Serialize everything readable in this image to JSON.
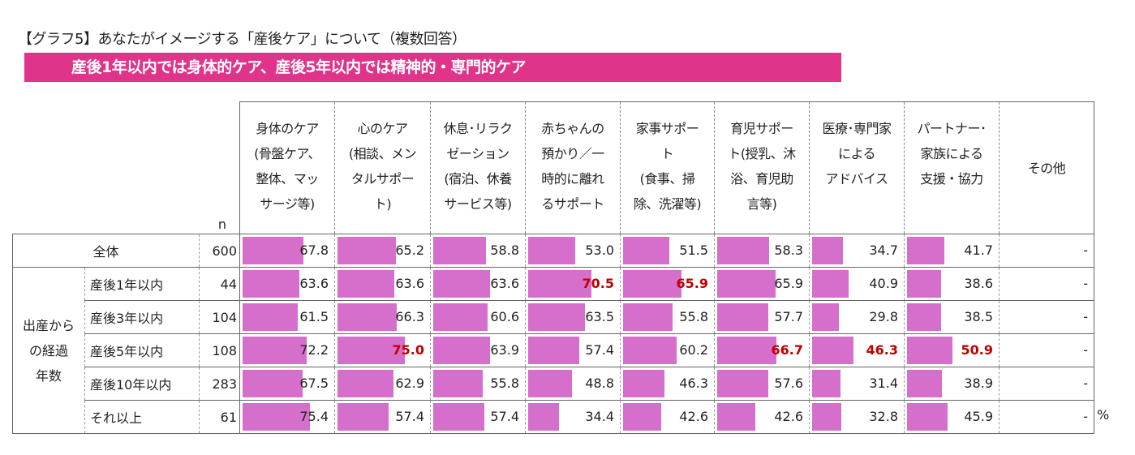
{
  "title": "【グラフ5】あなたがイメージする「産後ケア」について（複数回答）",
  "banner": "産後1年以内では身体的ケア、産後5年以内では精神的・専門的ケア",
  "unit": "%",
  "colors": {
    "banner": "#E0338A",
    "bar": "#D56FCB",
    "highlight": "#C00000"
  },
  "chart_data": {
    "type": "table",
    "n_label": "n",
    "columns": [
      "身体のケア\n(骨盤ケア、\n整体、マッ\nサージ等)",
      "心のケア\n(相談、メン\nタルサポー\nト)",
      "休息･リラク\nゼーション\n(宿泊、休養\nサービス等)",
      "赤ちゃんの\n預かり／一\n時的に離れ\nるサポート",
      "家事サポー\nト\n(食事、掃\n除、洗濯等)",
      "育児サポー\nト(授乳、沐\n浴、育児助\n言等)",
      "医療･専門家\nによる\nアドバイス",
      "パートナー･\n家族による\n支援・協力",
      "その他"
    ],
    "total": {
      "label": "全体",
      "n": "600",
      "values": [
        "67.8",
        "65.2",
        "58.8",
        "53.0",
        "51.5",
        "58.3",
        "34.7",
        "41.7",
        "-"
      ],
      "highlight": []
    },
    "group_label": "出産から\nの経過\n年数",
    "rows": [
      {
        "label": "産後1年以内",
        "n": "44",
        "values": [
          "63.6",
          "63.6",
          "63.6",
          "70.5",
          "65.9",
          "65.9",
          "40.9",
          "38.6",
          "-"
        ],
        "highlight": [
          3,
          4
        ]
      },
      {
        "label": "産後3年以内",
        "n": "104",
        "values": [
          "61.5",
          "66.3",
          "60.6",
          "63.5",
          "55.8",
          "57.7",
          "29.8",
          "38.5",
          "-"
        ],
        "highlight": []
      },
      {
        "label": "産後5年以内",
        "n": "108",
        "values": [
          "72.2",
          "75.0",
          "63.9",
          "57.4",
          "60.2",
          "66.7",
          "46.3",
          "50.9",
          "-"
        ],
        "highlight": [
          1,
          5,
          6,
          7
        ]
      },
      {
        "label": "産後10年以内",
        "n": "283",
        "values": [
          "67.5",
          "62.9",
          "55.8",
          "48.8",
          "46.3",
          "57.6",
          "31.4",
          "38.9",
          "-"
        ],
        "highlight": []
      },
      {
        "label": "それ以上",
        "n": "61",
        "values": [
          "75.4",
          "57.4",
          "57.4",
          "34.4",
          "42.6",
          "42.6",
          "32.8",
          "45.9",
          "-"
        ],
        "highlight": []
      }
    ]
  }
}
